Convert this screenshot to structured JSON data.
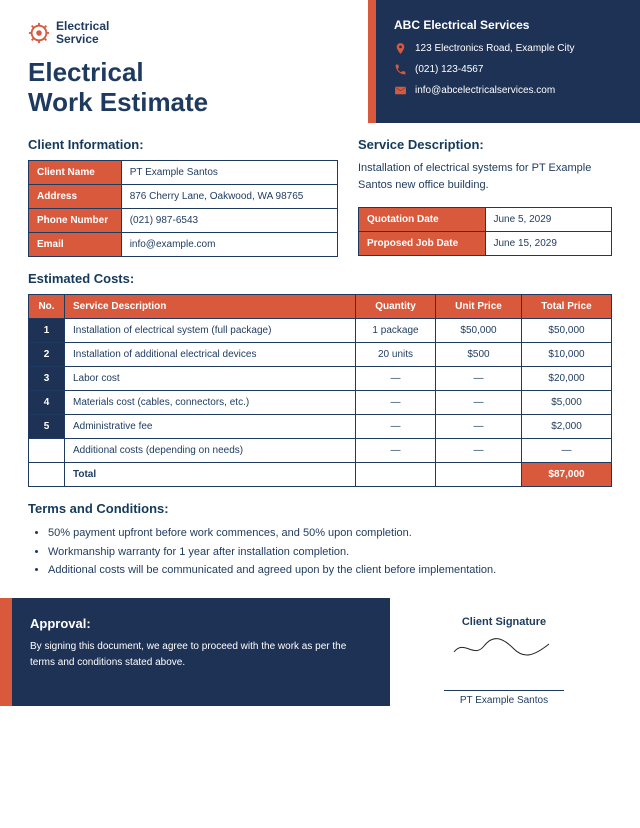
{
  "brand": {
    "line1": "Electrical",
    "line2": "Service"
  },
  "title": {
    "line1": "Electrical",
    "line2": "Work Estimate"
  },
  "company": {
    "name": "ABC Electrical Services",
    "address": "123 Electronics Road, Example City",
    "phone": "(021) 123-4567",
    "email": "info@abcelectricalservices.com"
  },
  "colors": {
    "navy": "#1e3256",
    "orange": "#d9593d",
    "text": "#1e3a5f"
  },
  "client_info": {
    "heading": "Client Information:",
    "labels": {
      "name": "Client Name",
      "address": "Address",
      "phone": "Phone Number",
      "email": "Email"
    },
    "values": {
      "name": "PT Example Santos",
      "address": "876 Cherry Lane, Oakwood, WA 98765",
      "phone": "(021) 987-6543",
      "email": "info@example.com"
    }
  },
  "service": {
    "heading": "Service Description:",
    "text": "Installation of electrical systems for PT Example Santos new office building.",
    "dates": {
      "q_label": "Quotation Date",
      "q_value": "June 5, 2029",
      "p_label": "Proposed Job Date",
      "p_value": "June 15, 2029"
    }
  },
  "costs": {
    "heading": "Estimated Costs:",
    "headers": {
      "no": "No.",
      "desc": "Service Description",
      "qty": "Quantity",
      "unit": "Unit Price",
      "total": "Total Price"
    },
    "rows": [
      {
        "no": "1",
        "desc": "Installation of electrical system (full package)",
        "qty": "1 package",
        "unit": "$50,000",
        "total": "$50,000"
      },
      {
        "no": "2",
        "desc": "Installation of additional electrical devices",
        "qty": "20 units",
        "unit": "$500",
        "total": "$10,000"
      },
      {
        "no": "3",
        "desc": "Labor cost",
        "qty": "—",
        "unit": "—",
        "total": "$20,000"
      },
      {
        "no": "4",
        "desc": "Materials cost (cables, connectors, etc.)",
        "qty": "—",
        "unit": "—",
        "total": "$5,000"
      },
      {
        "no": "5",
        "desc": "Administrative fee",
        "qty": "—",
        "unit": "—",
        "total": "$2,000"
      },
      {
        "no": "",
        "desc": "Additional costs (depending on needs)",
        "qty": "—",
        "unit": "—",
        "total": "—"
      }
    ],
    "total_label": "Total",
    "total_value": "$87,000"
  },
  "terms": {
    "heading": "Terms and Conditions:",
    "items": [
      "50% payment upfront before work commences, and 50% upon completion.",
      "Workmanship warranty for 1 year after installation completion.",
      "Additional costs will be communicated and agreed upon by the client before implementation."
    ]
  },
  "approval": {
    "heading": "Approval:",
    "text": "By signing this document, we agree to proceed with the work as per the terms and conditions stated above."
  },
  "signature": {
    "label": "Client Signature",
    "name": "PT Example Santos"
  }
}
